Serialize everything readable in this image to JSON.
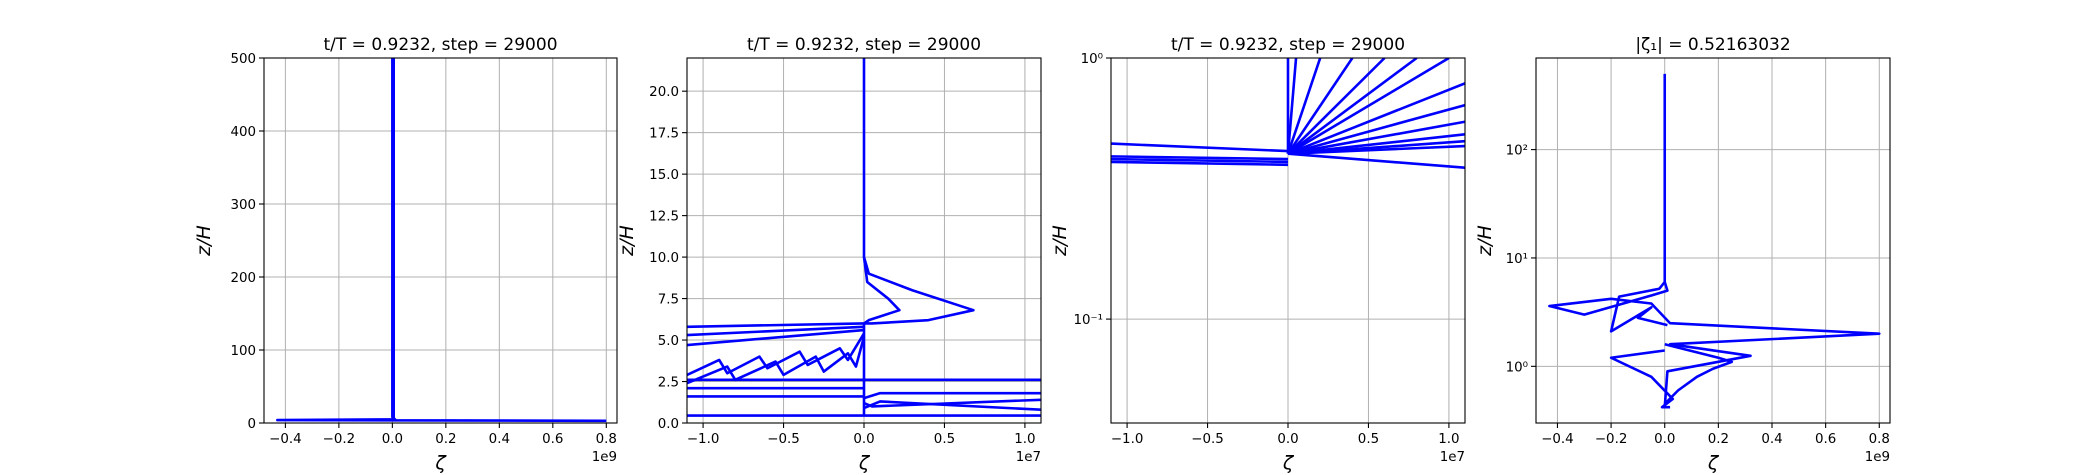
{
  "chart_data": [
    {
      "type": "line",
      "title": "t/T = 0.9232, step = 29000",
      "xlabel": "ζ",
      "ylabel": "z/H",
      "x_offset": "1e9",
      "color": "#0000ff",
      "grid": true,
      "yscale": "linear",
      "xlim": [
        -0.48,
        0.84
      ],
      "ylim": [
        0,
        500
      ],
      "xticks": [
        {
          "value": -0.4,
          "label": "−0.4"
        },
        {
          "value": -0.2,
          "label": "−0.2"
        },
        {
          "value": 0,
          "label": "0.0"
        },
        {
          "value": 0.2,
          "label": "0.2"
        },
        {
          "value": 0.4,
          "label": "0.4"
        },
        {
          "value": 0.6,
          "label": "0.6"
        },
        {
          "value": 0.8,
          "label": "0.8"
        }
      ],
      "yticks": [
        0,
        100,
        200,
        300,
        400,
        500
      ],
      "series": [
        {
          "x": [
            0,
            0,
            0.01,
            -0.43,
            0.8
          ],
          "values": [
            500,
            8,
            5,
            4,
            3
          ]
        },
        {
          "x": [
            0.005,
            0.005
          ],
          "values": [
            500,
            3
          ]
        }
      ]
    },
    {
      "type": "line",
      "title": "t/T = 0.9232, step = 29000",
      "xlabel": "ζ",
      "ylabel": "z/H",
      "x_offset": "1e7",
      "color": "#0000ff",
      "grid": true,
      "yscale": "linear",
      "xlim": [
        -1.1,
        1.1
      ],
      "ylim": [
        0,
        22
      ],
      "xticks": [
        {
          "value": -1,
          "label": "−1.0"
        },
        {
          "value": -0.5,
          "label": "−0.5"
        },
        {
          "value": 0,
          "label": "0.0"
        },
        {
          "value": 0.5,
          "label": "0.5"
        },
        {
          "value": 1,
          "label": "1.0"
        }
      ],
      "yticks": [
        {
          "value": 0,
          "label": "0.0"
        },
        {
          "value": 2.5,
          "label": "2.5"
        },
        {
          "value": 5,
          "label": "5.0"
        },
        {
          "value": 7.5,
          "label": "7.5"
        },
        {
          "value": 10,
          "label": "10.0"
        },
        {
          "value": 12.5,
          "label": "12.5"
        },
        {
          "value": 15,
          "label": "15.0"
        },
        {
          "value": 17.5,
          "label": "17.5"
        },
        {
          "value": 20,
          "label": "20.0"
        }
      ],
      "series": [
        {
          "x": [
            0,
            0,
            0.03,
            0.3,
            0.68,
            0.4,
            0.05,
            0
          ],
          "values": [
            22,
            10,
            9,
            8,
            6.8,
            6.2,
            6,
            6
          ]
        },
        {
          "x": [
            0,
            0.02,
            0.15,
            0.22,
            0.03,
            0
          ],
          "values": [
            10,
            8.5,
            7.5,
            6.8,
            6.2,
            6
          ]
        },
        {
          "x": [
            0,
            -1.1
          ],
          "values": [
            6,
            5.8
          ]
        },
        {
          "x": [
            0,
            -1.1
          ],
          "values": [
            5.8,
            5.3
          ]
        },
        {
          "x": [
            0,
            -1.1
          ],
          "values": [
            5.6,
            4.7
          ]
        },
        {
          "x": [
            0,
            -0.1,
            -0.15,
            -0.35,
            -0.4,
            -0.6,
            -0.65,
            -0.85,
            -0.9,
            -1.1
          ],
          "values": [
            5.4,
            3.8,
            4.5,
            3.5,
            4.3,
            3.3,
            4,
            3,
            3.8,
            2.9
          ]
        },
        {
          "x": [
            0,
            -0.05,
            -0.1,
            -0.25,
            -0.3,
            -0.5,
            -0.55,
            -0.8,
            -0.85,
            -1.1
          ],
          "values": [
            5.2,
            3.4,
            4.2,
            3.1,
            4,
            2.9,
            3.7,
            2.6,
            3.4,
            2.4
          ]
        },
        {
          "x": [
            0,
            0
          ],
          "values": [
            6,
            0.45
          ]
        },
        {
          "x": [
            -1.1,
            1.1
          ],
          "values": [
            2.6,
            2.6
          ]
        },
        {
          "x": [
            -1.1,
            0
          ],
          "values": [
            2.1,
            2.1
          ]
        },
        {
          "x": [
            -1.1,
            0
          ],
          "values": [
            1.6,
            1.6
          ]
        },
        {
          "x": [
            0,
            0.1,
            1.1
          ],
          "values": [
            1.5,
            1.8,
            1.8
          ]
        },
        {
          "x": [
            0,
            0.05,
            1.1
          ],
          "values": [
            1.2,
            1.0,
            1.4
          ]
        },
        {
          "x": [
            0,
            0.1,
            1.1
          ],
          "values": [
            0.9,
            1.3,
            0.8
          ]
        },
        {
          "x": [
            -1.1,
            1.1
          ],
          "values": [
            0.45,
            0.45
          ]
        }
      ]
    },
    {
      "type": "line",
      "title": "t/T = 0.9232, step = 29000",
      "xlabel": "ζ",
      "ylabel": "z/H",
      "x_offset": "1e7",
      "color": "#0000ff",
      "grid": true,
      "yscale": "log",
      "xlim": [
        -1.1,
        1.1
      ],
      "ylim": [
        0.04,
        1
      ],
      "xticks": [
        {
          "value": -1,
          "label": "−1.0"
        },
        {
          "value": -0.5,
          "label": "−0.5"
        },
        {
          "value": 0,
          "label": "0.0"
        },
        {
          "value": 0.5,
          "label": "0.5"
        },
        {
          "value": 1,
          "label": "1.0"
        }
      ],
      "yticks": [
        {
          "value": 0.1,
          "label": "10⁻¹"
        },
        {
          "value": 1,
          "label": "10⁰"
        }
      ],
      "series": [
        {
          "x": [
            0,
            0
          ],
          "values": [
            1,
            0.43
          ]
        },
        {
          "x": [
            0,
            0.05
          ],
          "values": [
            0.43,
            1
          ]
        },
        {
          "x": [
            0,
            0.2
          ],
          "values": [
            0.43,
            1
          ]
        },
        {
          "x": [
            0,
            0.4
          ],
          "values": [
            0.43,
            1
          ]
        },
        {
          "x": [
            0,
            0.6
          ],
          "values": [
            0.43,
            1
          ]
        },
        {
          "x": [
            0,
            0.8
          ],
          "values": [
            0.43,
            1
          ]
        },
        {
          "x": [
            0,
            1.0
          ],
          "values": [
            0.43,
            1
          ]
        },
        {
          "x": [
            0,
            1.1
          ],
          "values": [
            0.43,
            0.8
          ]
        },
        {
          "x": [
            0,
            1.1
          ],
          "values": [
            0.43,
            0.66
          ]
        },
        {
          "x": [
            0,
            1.1
          ],
          "values": [
            0.43,
            0.57
          ]
        },
        {
          "x": [
            0,
            1.1
          ],
          "values": [
            0.43,
            0.51
          ]
        },
        {
          "x": [
            0,
            1.1
          ],
          "values": [
            0.43,
            0.48
          ]
        },
        {
          "x": [
            0,
            1.1
          ],
          "values": [
            0.43,
            0.46
          ]
        },
        {
          "x": [
            0,
            1.1
          ],
          "values": [
            0.43,
            0.38
          ]
        },
        {
          "x": [
            -1.1,
            0
          ],
          "values": [
            0.47,
            0.44
          ]
        },
        {
          "x": [
            -1.1,
            0
          ],
          "values": [
            0.42,
            0.41
          ]
        },
        {
          "x": [
            -1.1,
            0
          ],
          "values": [
            0.41,
            0.4
          ]
        },
        {
          "x": [
            -1.1,
            0
          ],
          "values": [
            0.4,
            0.39
          ]
        }
      ]
    },
    {
      "type": "line",
      "title": "|ζ₁| = 0.52163032",
      "xlabel": "ζ",
      "ylabel": "z/H",
      "x_offset": "1e9",
      "color": "#0000ff",
      "grid": true,
      "yscale": "log",
      "xlim": [
        -0.48,
        0.84
      ],
      "ylim": [
        0.3,
        700
      ],
      "xticks": [
        {
          "value": -0.4,
          "label": "−0.4"
        },
        {
          "value": -0.2,
          "label": "−0.2"
        },
        {
          "value": 0,
          "label": "0.0"
        },
        {
          "value": 0.2,
          "label": "0.2"
        },
        {
          "value": 0.4,
          "label": "0.4"
        },
        {
          "value": 0.6,
          "label": "0.6"
        },
        {
          "value": 0.8,
          "label": "0.8"
        }
      ],
      "yticks": [
        {
          "value": 1,
          "label": "10⁰"
        },
        {
          "value": 10,
          "label": "10¹"
        },
        {
          "value": 100,
          "label": "10²"
        }
      ],
      "series": [
        {
          "x": [
            0,
            0,
            0.01,
            -0.05,
            -0.3,
            -0.43,
            -0.2,
            -0.05,
            0.02,
            0.8,
            0.02,
            0.32,
            0.01,
            0
          ],
          "values": [
            500,
            6,
            5,
            4.5,
            3,
            3.6,
            4.2,
            3.8,
            2.5,
            2.0,
            1.6,
            1.25,
            0.9,
            0.42
          ]
        },
        {
          "x": [
            0,
            -0.02,
            -0.17,
            -0.2,
            -0.05,
            -0.1,
            0.01
          ],
          "values": [
            6,
            5.2,
            4.4,
            2.1,
            3.5,
            2.8,
            2.4
          ]
        },
        {
          "x": [
            0,
            0.2,
            0.25,
            0.18,
            0.12,
            0.05,
            0
          ],
          "values": [
            1.6,
            1.2,
            1.1,
            0.95,
            0.8,
            0.6,
            0.45
          ]
        },
        {
          "x": [
            0,
            -0.2,
            -0.05,
            0.03,
            -0.01,
            0.02
          ],
          "values": [
            1.4,
            1.2,
            0.8,
            0.5,
            0.42,
            0.42
          ]
        }
      ]
    }
  ]
}
